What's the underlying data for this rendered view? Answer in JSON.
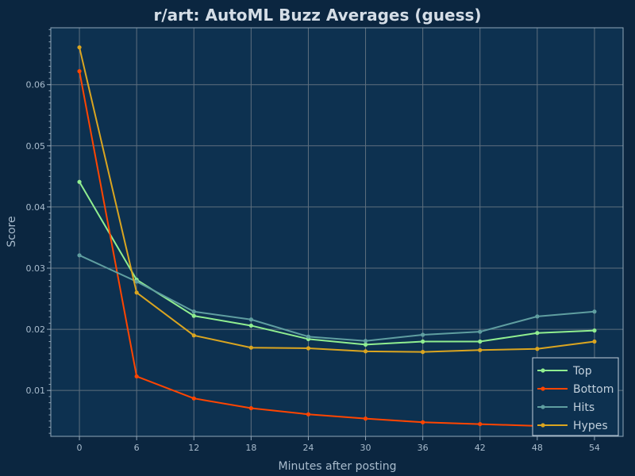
{
  "chart_data": {
    "type": "line",
    "title": "r/art: AutoML Buzz Averages (guess)",
    "xlabel": "Minutes after posting",
    "ylabel": "Score",
    "x": [
      0,
      6,
      12,
      18,
      24,
      30,
      36,
      42,
      48,
      54
    ],
    "x_ticks": [
      "0",
      "6",
      "12",
      "18",
      "24",
      "30",
      "36",
      "42",
      "48",
      "54"
    ],
    "y_ticks": [
      "0.01",
      "0.02",
      "0.03",
      "0.04",
      "0.05",
      "0.06"
    ],
    "y_tick_values": [
      0.01,
      0.02,
      0.03,
      0.04,
      0.05,
      0.06
    ],
    "xlim": [
      -3,
      57
    ],
    "ylim": [
      0.0025,
      0.0693
    ],
    "grid": true,
    "legend_position": "bottom-right",
    "series": [
      {
        "name": "Top",
        "color": "#90ee90",
        "values": [
          0.0441,
          0.0281,
          0.0222,
          0.0206,
          0.0184,
          0.0175,
          0.018,
          0.018,
          0.0194,
          0.0198
        ]
      },
      {
        "name": "Bottom",
        "color": "#ff4500",
        "values": [
          0.0622,
          0.0123,
          0.0087,
          0.0071,
          0.0061,
          0.0054,
          0.0048,
          0.0045,
          0.0042,
          0.0041
        ]
      },
      {
        "name": "Hits",
        "color": "#5f9ea0",
        "values": [
          0.0321,
          0.0278,
          0.0229,
          0.0216,
          0.0188,
          0.0181,
          0.0191,
          0.0196,
          0.0221,
          0.0229
        ]
      },
      {
        "name": "Hypes",
        "color": "#daa520",
        "values": [
          0.0661,
          0.026,
          0.019,
          0.017,
          0.0169,
          0.0164,
          0.0163,
          0.0166,
          0.0168,
          0.018
        ]
      }
    ]
  }
}
